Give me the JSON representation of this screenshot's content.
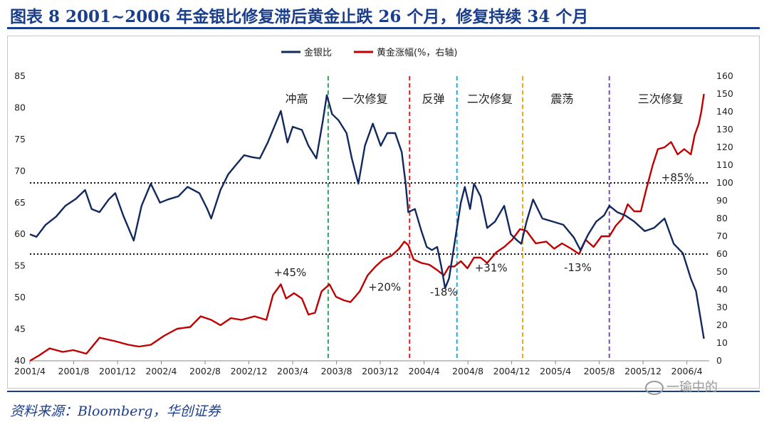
{
  "figure": {
    "title": "图表 8   2001~2006 年金银比修复滞后黄金止跌 26 个月，修复持续 34 个月",
    "source": "资料来源：Bloomberg，华创证券",
    "watermark": "一瑜中的"
  },
  "chart_data": {
    "type": "line",
    "title": "2001~2006 年金银比修复滞后黄金止跌 26 个月，修复持续 34 个月",
    "x_tick_labels": [
      "2001/4",
      "2001/8",
      "2001/12",
      "2002/4",
      "2002/8",
      "2002/12",
      "2003/4",
      "2003/8",
      "2003/12",
      "2004/4",
      "2004/8",
      "2004/12",
      "2005/4",
      "2005/8",
      "2005/12",
      "2006/4"
    ],
    "x_range": [
      "2001/4",
      "2006/5"
    ],
    "y_left": {
      "label": "金银比",
      "range": [
        40,
        85
      ],
      "ticks": [
        "40",
        "45",
        "50",
        "55",
        "60",
        "65",
        "70",
        "75",
        "80",
        "85"
      ]
    },
    "y_right": {
      "label": "黄金涨幅(%，右轴)",
      "range": [
        0,
        160
      ],
      "ticks": [
        "0",
        "10",
        "20",
        "30",
        "40",
        "50",
        "60",
        "70",
        "80",
        "90",
        "100",
        "110",
        "120",
        "130",
        "140",
        "150",
        "160"
      ]
    },
    "legend": {
      "position": "top-center",
      "entries": [
        "金银比",
        "黄金涨幅(%，右轴)"
      ]
    },
    "colors": {
      "ratio": "#12295e",
      "gold": "#c00000"
    },
    "series": [
      {
        "name": "金银比",
        "axis": "left",
        "points": [
          [
            2001.25,
            60
          ],
          [
            2001.3,
            59.6
          ],
          [
            2001.37,
            61.5
          ],
          [
            2001.45,
            62.8
          ],
          [
            2001.52,
            64.5
          ],
          [
            2001.6,
            65.6
          ],
          [
            2001.67,
            67
          ],
          [
            2001.72,
            64
          ],
          [
            2001.78,
            63.5
          ],
          [
            2001.85,
            65.5
          ],
          [
            2001.9,
            66.5
          ],
          [
            2001.96,
            63
          ],
          [
            2002.0,
            61
          ],
          [
            2002.04,
            59
          ],
          [
            2002.1,
            64.5
          ],
          [
            2002.17,
            68
          ],
          [
            2002.24,
            65
          ],
          [
            2002.3,
            65.5
          ],
          [
            2002.38,
            66
          ],
          [
            2002.45,
            67.5
          ],
          [
            2002.54,
            66.5
          ],
          [
            2002.6,
            64
          ],
          [
            2002.63,
            62.5
          ],
          [
            2002.7,
            67
          ],
          [
            2002.76,
            69.5
          ],
          [
            2002.82,
            71
          ],
          [
            2002.88,
            72.5
          ],
          [
            2002.94,
            72.2
          ],
          [
            2003.0,
            72
          ],
          [
            2003.06,
            74.5
          ],
          [
            2003.11,
            77
          ],
          [
            2003.16,
            79.5
          ],
          [
            2003.21,
            74.5
          ],
          [
            2003.25,
            77
          ],
          [
            2003.32,
            76.5
          ],
          [
            2003.37,
            74
          ],
          [
            2003.43,
            72
          ],
          [
            2003.48,
            78
          ],
          [
            2003.51,
            82
          ],
          [
            2003.55,
            79
          ],
          [
            2003.6,
            78
          ],
          [
            2003.66,
            76
          ],
          [
            2003.7,
            72
          ],
          [
            2003.75,
            68
          ],
          [
            2003.8,
            74
          ],
          [
            2003.86,
            77.5
          ],
          [
            2003.92,
            74
          ],
          [
            2003.97,
            76
          ],
          [
            2004.03,
            76
          ],
          [
            2004.08,
            73
          ],
          [
            2004.11,
            68
          ],
          [
            2004.13,
            63.5
          ],
          [
            2004.18,
            64
          ],
          [
            2004.23,
            60.5
          ],
          [
            2004.27,
            58
          ],
          [
            2004.31,
            57.5
          ],
          [
            2004.35,
            58
          ],
          [
            2004.38,
            55
          ],
          [
            2004.41,
            51.5
          ],
          [
            2004.44,
            53
          ],
          [
            2004.47,
            57
          ],
          [
            2004.5,
            61
          ],
          [
            2004.53,
            65
          ],
          [
            2004.56,
            67.5
          ],
          [
            2004.6,
            64
          ],
          [
            2004.63,
            68
          ],
          [
            2004.68,
            66
          ],
          [
            2004.73,
            61
          ],
          [
            2004.79,
            62
          ],
          [
            2004.86,
            64.5
          ],
          [
            2004.91,
            60
          ],
          [
            2004.96,
            59
          ],
          [
            2004.99,
            58.5
          ],
          [
            2005.03,
            62
          ],
          [
            2005.08,
            65.5
          ],
          [
            2005.15,
            62.5
          ],
          [
            2005.23,
            62
          ],
          [
            2005.31,
            61.5
          ],
          [
            2005.39,
            59.5
          ],
          [
            2005.44,
            57.5
          ],
          [
            2005.5,
            60
          ],
          [
            2005.56,
            62
          ],
          [
            2005.62,
            63
          ],
          [
            2005.66,
            64.5
          ],
          [
            2005.72,
            63.5
          ],
          [
            2005.78,
            63
          ],
          [
            2005.85,
            62
          ],
          [
            2005.93,
            60.5
          ],
          [
            2006.0,
            61
          ],
          [
            2006.08,
            62.5
          ],
          [
            2006.15,
            58.5
          ],
          [
            2006.22,
            57
          ],
          [
            2006.28,
            53
          ],
          [
            2006.32,
            51
          ],
          [
            2006.36,
            46
          ],
          [
            2006.38,
            43.5
          ]
        ]
      },
      {
        "name": "黄金涨幅(%，右轴)",
        "axis": "right",
        "points": [
          [
            2001.25,
            0
          ],
          [
            2001.32,
            3
          ],
          [
            2001.4,
            7
          ],
          [
            2001.5,
            5
          ],
          [
            2001.58,
            6
          ],
          [
            2001.68,
            4
          ],
          [
            2001.78,
            13
          ],
          [
            2001.9,
            11
          ],
          [
            2002.0,
            9
          ],
          [
            2002.08,
            8
          ],
          [
            2002.17,
            9
          ],
          [
            2002.27,
            14
          ],
          [
            2002.37,
            18
          ],
          [
            2002.47,
            19
          ],
          [
            2002.55,
            25
          ],
          [
            2002.63,
            23
          ],
          [
            2002.7,
            20
          ],
          [
            2002.78,
            24
          ],
          [
            2002.86,
            23
          ],
          [
            2002.96,
            25
          ],
          [
            2003.05,
            23
          ],
          [
            2003.1,
            37
          ],
          [
            2003.16,
            43
          ],
          [
            2003.2,
            35
          ],
          [
            2003.26,
            38
          ],
          [
            2003.32,
            35
          ],
          [
            2003.37,
            26
          ],
          [
            2003.42,
            27
          ],
          [
            2003.47,
            39
          ],
          [
            2003.53,
            43
          ],
          [
            2003.58,
            36
          ],
          [
            2003.64,
            34
          ],
          [
            2003.69,
            33
          ],
          [
            2003.76,
            39
          ],
          [
            2003.82,
            48
          ],
          [
            2003.88,
            53
          ],
          [
            2003.94,
            57
          ],
          [
            2004.0,
            59
          ],
          [
            2004.06,
            63
          ],
          [
            2004.1,
            67
          ],
          [
            2004.13,
            65
          ],
          [
            2004.17,
            57
          ],
          [
            2004.23,
            55
          ],
          [
            2004.29,
            54
          ],
          [
            2004.35,
            51
          ],
          [
            2004.4,
            48
          ],
          [
            2004.44,
            53
          ],
          [
            2004.48,
            53
          ],
          [
            2004.53,
            56
          ],
          [
            2004.58,
            52
          ],
          [
            2004.63,
            58
          ],
          [
            2004.68,
            58
          ],
          [
            2004.73,
            55
          ],
          [
            2004.8,
            61
          ],
          [
            2004.86,
            64
          ],
          [
            2004.92,
            68
          ],
          [
            2004.98,
            74
          ],
          [
            2005.03,
            73
          ],
          [
            2005.1,
            66
          ],
          [
            2005.18,
            67
          ],
          [
            2005.24,
            63
          ],
          [
            2005.3,
            66
          ],
          [
            2005.37,
            63
          ],
          [
            2005.43,
            60
          ],
          [
            2005.48,
            68
          ],
          [
            2005.54,
            64
          ],
          [
            2005.6,
            70
          ],
          [
            2005.66,
            70
          ],
          [
            2005.71,
            76
          ],
          [
            2005.76,
            80
          ],
          [
            2005.8,
            88
          ],
          [
            2005.85,
            84
          ],
          [
            2005.9,
            84
          ],
          [
            2005.94,
            96
          ],
          [
            2005.99,
            110
          ],
          [
            2006.03,
            119
          ],
          [
            2006.08,
            120
          ],
          [
            2006.13,
            123
          ],
          [
            2006.18,
            116
          ],
          [
            2006.23,
            119
          ],
          [
            2006.28,
            116
          ],
          [
            2006.31,
            127
          ],
          [
            2006.34,
            133
          ],
          [
            2006.36,
            140
          ],
          [
            2006.38,
            150
          ]
        ]
      }
    ],
    "reference_lines": [
      {
        "axis": "right",
        "value": 100,
        "style": "dotted"
      },
      {
        "axis": "right",
        "value": 60,
        "style": "dotted"
      }
    ],
    "phase_dividers": [
      {
        "x": 2003.52,
        "color": "#2ca25f"
      },
      {
        "x": 2004.14,
        "color": "#e31a1c"
      },
      {
        "x": 2004.5,
        "color": "#1ab0e0"
      },
      {
        "x": 2005.0,
        "color": "#f5a623"
      },
      {
        "x": 2005.66,
        "color": "#7b4fb5"
      }
    ],
    "phase_labels": [
      {
        "text": "冲高",
        "x": 2003.28,
        "y": 80.8
      },
      {
        "text": "一次修复",
        "x": 2003.8,
        "y": 80.8
      },
      {
        "text": "反弹",
        "x": 2004.32,
        "y": 80.8
      },
      {
        "text": "二次修复",
        "x": 2004.75,
        "y": 80.8
      },
      {
        "text": "震荡",
        "x": 2005.3,
        "y": 80.8
      },
      {
        "text": "三次修复",
        "x": 2006.05,
        "y": 80.8
      }
    ],
    "annotations": [
      {
        "text": "+45%",
        "x": 2003.23,
        "y": 53.4
      },
      {
        "text": "+20%",
        "x": 2003.95,
        "y": 51.1
      },
      {
        "text": "-18%",
        "x": 2004.4,
        "y": 50.3
      },
      {
        "text": "+31%",
        "x": 2004.76,
        "y": 54.1
      },
      {
        "text": "-13%",
        "x": 2005.42,
        "y": 54.2
      },
      {
        "text": "+85%",
        "x": 2006.18,
        "y": 68.4
      }
    ]
  }
}
